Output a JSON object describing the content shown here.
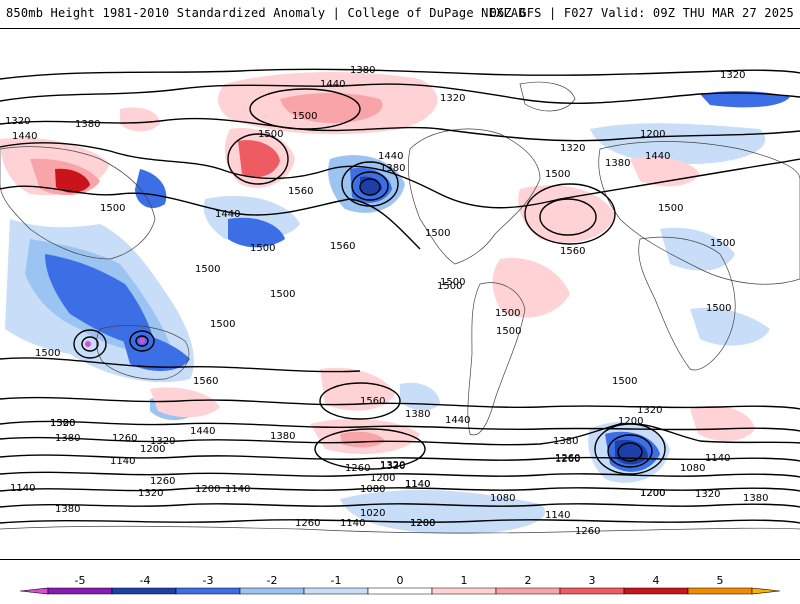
{
  "header": {
    "title": "850mb Height 1981-2010 Standardized Anomaly | College of DuPage NEXLAB",
    "valid": "06Z GFS | F027 Valid: 09Z THU MAR 27 2025"
  },
  "colorbar": {
    "ticks": [
      "-5",
      "-4",
      "-3",
      "-2",
      "-1",
      "0",
      "1",
      "2",
      "3",
      "4",
      "5"
    ],
    "colors": [
      "#dc4bd6",
      "#8a1ab3",
      "#1d3fa8",
      "#3c6ee6",
      "#9cc4f2",
      "#c7ddf8",
      "#ffffff",
      "#ffd3d6",
      "#f8a4a8",
      "#ef5b62",
      "#c9141b",
      "#f08a00",
      "#ffb000"
    ]
  },
  "contour_labels": [
    "1380",
    "1440",
    "1500",
    "1560",
    "1320",
    "1260",
    "1200",
    "1140",
    "1080",
    "1020"
  ],
  "map_labels": [
    {
      "t": "1380",
      "k": "a1"
    },
    {
      "t": "1440",
      "k": "a2"
    },
    {
      "t": "1500",
      "k": "a3"
    },
    {
      "t": "1320",
      "k": "a4"
    },
    {
      "t": "1320",
      "k": "a5"
    },
    {
      "t": "1380",
      "k": "a6"
    },
    {
      "t": "1440",
      "k": "a7"
    },
    {
      "t": "1500",
      "k": "a8"
    },
    {
      "t": "1560",
      "k": "a9"
    },
    {
      "t": "1440",
      "k": "a10"
    },
    {
      "t": "1500",
      "k": "a11"
    },
    {
      "t": "1560",
      "k": "a12"
    },
    {
      "t": "1500",
      "k": "a13"
    },
    {
      "t": "1500",
      "k": "a14"
    },
    {
      "t": "1500",
      "k": "a15"
    },
    {
      "t": "1560",
      "k": "a16"
    },
    {
      "t": "1500",
      "k": "a17"
    },
    {
      "t": "1560",
      "k": "a18"
    },
    {
      "t": "1500",
      "k": "a19"
    },
    {
      "t": "1500",
      "k": "a20"
    },
    {
      "t": "1320",
      "k": "a21"
    },
    {
      "t": "1200",
      "k": "a22"
    },
    {
      "t": "1320",
      "k": "a23"
    },
    {
      "t": "1380",
      "k": "a24"
    },
    {
      "t": "1440",
      "k": "a25"
    },
    {
      "t": "1500",
      "k": "a26"
    },
    {
      "t": "1500",
      "k": "a27"
    },
    {
      "t": "1500",
      "k": "a28"
    },
    {
      "t": "1500",
      "k": "a29"
    },
    {
      "t": "1500",
      "k": "a30"
    },
    {
      "t": "1440",
      "k": "a31"
    },
    {
      "t": "1380",
      "k": "a32"
    },
    {
      "t": "1320",
      "k": "a33"
    },
    {
      "t": "1260",
      "k": "a34"
    },
    {
      "t": "1200",
      "k": "a35"
    },
    {
      "t": "1140",
      "k": "a36"
    },
    {
      "t": "1080",
      "k": "a37"
    },
    {
      "t": "1140",
      "k": "a38"
    },
    {
      "t": "1200",
      "k": "a39"
    },
    {
      "t": "1320",
      "k": "a40"
    },
    {
      "t": "1380",
      "k": "a41"
    },
    {
      "t": "1500",
      "k": "a42"
    },
    {
      "t": "1380",
      "k": "a43"
    },
    {
      "t": "1260",
      "k": "a44"
    },
    {
      "t": "1200",
      "k": "a45"
    },
    {
      "t": "1140",
      "k": "a46"
    },
    {
      "t": "1320",
      "k": "a47"
    },
    {
      "t": "1440",
      "k": "a48"
    },
    {
      "t": "1380",
      "k": "a49"
    },
    {
      "t": "1260",
      "k": "a50"
    },
    {
      "t": "1320",
      "k": "a51"
    },
    {
      "t": "1560",
      "k": "a52"
    },
    {
      "t": "1500",
      "k": "a53"
    },
    {
      "t": "1260",
      "k": "a54"
    },
    {
      "t": "1200",
      "k": "a55"
    },
    {
      "t": "1140",
      "k": "a56"
    },
    {
      "t": "1320",
      "k": "a57"
    },
    {
      "t": "1380",
      "k": "a58"
    },
    {
      "t": "1260",
      "k": "a59"
    },
    {
      "t": "1140",
      "k": "a60"
    },
    {
      "t": "1080",
      "k": "a61"
    },
    {
      "t": "1020",
      "k": "a62"
    },
    {
      "t": "1200",
      "k": "a63"
    },
    {
      "t": "1260",
      "k": "a64"
    },
    {
      "t": "1140",
      "k": "a65"
    },
    {
      "t": "1080",
      "k": "a66"
    },
    {
      "t": "1200",
      "k": "a67"
    },
    {
      "t": "1140",
      "k": "a68"
    },
    {
      "t": "1260",
      "k": "a69"
    },
    {
      "t": "1320",
      "k": "a70"
    },
    {
      "t": "1380",
      "k": "a71"
    },
    {
      "t": "1140",
      "k": "a72"
    },
    {
      "t": "1440",
      "k": "a73"
    },
    {
      "t": "1500",
      "k": "a74"
    },
    {
      "t": "1200",
      "k": "a75"
    },
    {
      "t": "1200",
      "k": "a76"
    },
    {
      "t": "1320",
      "k": "a77"
    },
    {
      "t": "1380",
      "k": "a78"
    },
    {
      "t": "1500",
      "k": "a79"
    },
    {
      "t": "1500",
      "k": "a80"
    }
  ]
}
